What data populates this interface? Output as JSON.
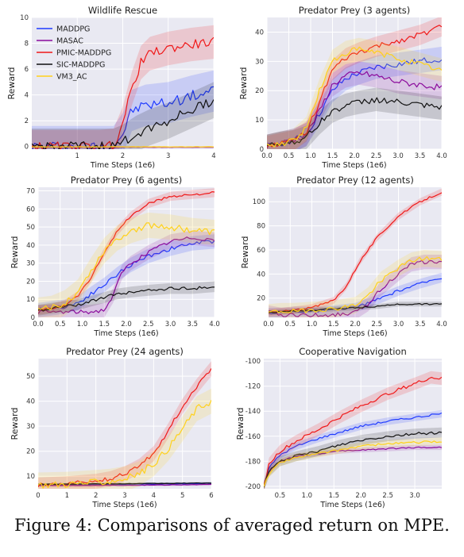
{
  "colors": {
    "MADDPG": "#1f3bff",
    "MASAC": "#8b0a9c",
    "PMIC-MADDPG": "#f01818",
    "SIC-MADDPG": "#111111",
    "VM3_AC": "#ffd11a",
    "panel_bg": "#e9e9f2",
    "grid": "#ffffff"
  },
  "legend": [
    "MADDPG",
    "MASAC",
    "PMIC-MADDPG",
    "SIC-MADDPG",
    "VM3_AC"
  ],
  "caption": "Figure 4: Comparisons of averaged return on MPE.",
  "chart_data": [
    {
      "type": "line",
      "title": "Wildlife Rescue",
      "xlabel": "Time Steps (1e6)",
      "ylabel": "Reward",
      "xlim": [
        0,
        4
      ],
      "ylim": [
        -0.2,
        10
      ],
      "xticks": [
        1,
        2,
        3,
        4
      ],
      "yticks": [
        0,
        2,
        4,
        6,
        8,
        10
      ],
      "grid": true,
      "legend": "top-left",
      "series": [
        {
          "name": "MADDPG",
          "x": [
            0,
            0.5,
            1,
            1.5,
            1.8,
            2,
            2.2,
            2.5,
            3,
            3.5,
            4
          ],
          "y": [
            0,
            0,
            0,
            0,
            0,
            1.0,
            2.8,
            3.2,
            3.4,
            3.9,
            4.3
          ],
          "band": 1.6
        },
        {
          "name": "MASAC",
          "x": [
            0,
            1,
            2,
            3,
            4
          ],
          "y": [
            -0.05,
            -0.05,
            -0.05,
            -0.05,
            -0.05
          ],
          "band": 0.05
        },
        {
          "name": "PMIC-MADDPG",
          "x": [
            0,
            0.5,
            1,
            1.5,
            1.8,
            2,
            2.2,
            2.4,
            2.6,
            3,
            3.5,
            4
          ],
          "y": [
            0,
            0,
            0,
            0,
            0.1,
            1.8,
            4.5,
            6.5,
            7.2,
            7.6,
            7.9,
            8.1
          ],
          "band": 1.3
        },
        {
          "name": "SIC-MADDPG",
          "x": [
            0,
            0.5,
            1,
            1.5,
            1.8,
            2,
            2.3,
            2.6,
            3,
            3.5,
            4
          ],
          "y": [
            0,
            0,
            0,
            0,
            0,
            0.3,
            1.0,
            1.5,
            2.0,
            2.8,
            3.6
          ],
          "band": 1.4
        },
        {
          "name": "VM3_AC",
          "x": [
            0,
            1,
            2,
            3,
            4
          ],
          "y": [
            -0.02,
            -0.02,
            -0.02,
            -0.02,
            -0.02
          ],
          "band": 0.05
        }
      ]
    },
    {
      "type": "line",
      "title": "Predator Prey (3 agents)",
      "xlabel": "Time Steps (1e6)",
      "ylabel": "Reward",
      "xlim": [
        0,
        4
      ],
      "ylim": [
        0,
        45
      ],
      "xticks": [
        0.0,
        0.5,
        1.0,
        1.5,
        2.0,
        2.5,
        3.0,
        3.5,
        4.0
      ],
      "yticks": [
        0,
        10,
        20,
        30,
        40
      ],
      "grid": true,
      "series": [
        {
          "name": "MADDPG",
          "x": [
            0,
            0.3,
            0.6,
            0.9,
            1.2,
            1.5,
            1.8,
            2.1,
            2.5,
            3,
            3.5,
            4
          ],
          "y": [
            1,
            2,
            3,
            5,
            12,
            20,
            24,
            26,
            28,
            29,
            30,
            31
          ],
          "band": 4
        },
        {
          "name": "MASAC",
          "x": [
            0,
            0.3,
            0.6,
            0.9,
            1.2,
            1.5,
            1.8,
            2.1,
            2.5,
            3,
            3.5,
            4
          ],
          "y": [
            1,
            2,
            3,
            5,
            13,
            22,
            25,
            26,
            25,
            23,
            22,
            21
          ],
          "band": 4
        },
        {
          "name": "PMIC-MADDPG",
          "x": [
            0,
            0.3,
            0.6,
            0.9,
            1.2,
            1.5,
            1.8,
            2.1,
            2.5,
            3,
            3.5,
            4
          ],
          "y": [
            1,
            2,
            3,
            6,
            16,
            27,
            31,
            33,
            35,
            37,
            39,
            42
          ],
          "band": 3.5
        },
        {
          "name": "SIC-MADDPG",
          "x": [
            0,
            0.3,
            0.6,
            0.9,
            1.2,
            1.5,
            1.8,
            2.1,
            2.5,
            3,
            3.5,
            4
          ],
          "y": [
            1,
            2,
            2.5,
            4,
            9,
            13,
            15,
            16,
            17,
            16,
            15,
            14
          ],
          "band": 4
        },
        {
          "name": "VM3_AC",
          "x": [
            0,
            0.3,
            0.6,
            0.9,
            1.2,
            1.5,
            1.8,
            2.1,
            2.5,
            3,
            3.5,
            4
          ],
          "y": [
            1,
            2,
            3,
            7,
            20,
            30,
            33,
            34,
            33,
            31,
            29,
            27
          ],
          "band": 4
        }
      ]
    },
    {
      "type": "line",
      "title": "Predator Prey (6 agents)",
      "xlabel": "Time Steps (1e6)",
      "ylabel": "Reward",
      "xlim": [
        0,
        4
      ],
      "ylim": [
        0,
        72
      ],
      "xticks": [
        0.0,
        0.5,
        1.0,
        1.5,
        2.0,
        2.5,
        3.0,
        3.5,
        4.0
      ],
      "yticks": [
        0,
        10,
        20,
        30,
        40,
        50,
        60,
        70
      ],
      "grid": true,
      "series": [
        {
          "name": "MADDPG",
          "x": [
            0,
            0.3,
            0.6,
            0.9,
            1.2,
            1.5,
            1.8,
            2.1,
            2.5,
            3,
            3.5,
            4
          ],
          "y": [
            4,
            5,
            6,
            8,
            13,
            18,
            24,
            29,
            34,
            38,
            41,
            42
          ],
          "band": 4
        },
        {
          "name": "MASAC",
          "x": [
            0,
            0.3,
            0.6,
            0.9,
            1.2,
            1.5,
            1.7,
            1.9,
            2.1,
            2.5,
            3,
            3.5,
            4
          ],
          "y": [
            3,
            3,
            3,
            3,
            3,
            4,
            12,
            25,
            30,
            36,
            42,
            44,
            43
          ],
          "band": 4
        },
        {
          "name": "PMIC-MADDPG",
          "x": [
            0,
            0.3,
            0.6,
            0.9,
            1.2,
            1.5,
            1.8,
            2.1,
            2.5,
            3,
            3.5,
            4
          ],
          "y": [
            4,
            5,
            7,
            12,
            22,
            36,
            48,
            56,
            63,
            67,
            68,
            69
          ],
          "band": 2.5
        },
        {
          "name": "SIC-MADDPG",
          "x": [
            0,
            0.3,
            0.6,
            0.9,
            1.2,
            1.5,
            1.8,
            2.1,
            2.5,
            3,
            3.5,
            4
          ],
          "y": [
            4,
            5,
            6,
            7,
            9,
            11,
            13,
            14,
            15,
            16,
            16,
            17
          ],
          "band": 3
        },
        {
          "name": "VM3_AC",
          "x": [
            0,
            0.3,
            0.6,
            0.9,
            1.2,
            1.5,
            1.8,
            2.1,
            2.5,
            3,
            3.5,
            4
          ],
          "y": [
            4,
            5,
            8,
            14,
            26,
            37,
            44,
            48,
            51,
            50,
            48,
            47
          ],
          "band": 7
        }
      ]
    },
    {
      "type": "line",
      "title": "Predator Prey (12 agents)",
      "xlabel": "Time Steps (1e6)",
      "ylabel": "Reward",
      "xlim": [
        0,
        4
      ],
      "ylim": [
        4,
        112
      ],
      "xticks": [
        0.0,
        0.5,
        1.0,
        1.5,
        2.0,
        2.5,
        3.0,
        3.5,
        4.0
      ],
      "yticks": [
        20,
        40,
        60,
        80,
        100
      ],
      "grid": true,
      "series": [
        {
          "name": "MADDPG",
          "x": [
            0,
            0.3,
            0.6,
            1,
            1.5,
            2,
            2.3,
            2.6,
            3,
            3.5,
            4
          ],
          "y": [
            8,
            8,
            9,
            9,
            10,
            12,
            16,
            20,
            26,
            32,
            37
          ],
          "band": 4
        },
        {
          "name": "MASAC",
          "x": [
            0,
            0.3,
            0.6,
            1,
            1.5,
            2,
            2.3,
            2.6,
            3,
            3.3,
            3.6,
            4
          ],
          "y": [
            8,
            6,
            6,
            6,
            6,
            8,
            15,
            28,
            40,
            48,
            50,
            50
          ],
          "band": 6
        },
        {
          "name": "PMIC-MADDPG",
          "x": [
            0,
            0.3,
            0.6,
            1,
            1.5,
            1.8,
            2.1,
            2.5,
            3,
            3.5,
            4
          ],
          "y": [
            8,
            9,
            10,
            12,
            18,
            30,
            50,
            70,
            88,
            100,
            108
          ],
          "band": 3
        },
        {
          "name": "SIC-MADDPG",
          "x": [
            0,
            0.5,
            1,
            1.5,
            2,
            2.5,
            3,
            3.5,
            4
          ],
          "y": [
            8,
            9,
            10,
            11,
            12,
            13,
            15,
            15,
            15
          ],
          "band": 2
        },
        {
          "name": "VM3_AC",
          "x": [
            0,
            0.3,
            0.6,
            1,
            1.5,
            2,
            2.3,
            2.6,
            3,
            3.3,
            3.6,
            4
          ],
          "y": [
            8,
            9,
            9,
            10,
            11,
            14,
            22,
            35,
            45,
            51,
            53,
            52
          ],
          "band": 7
        }
      ]
    },
    {
      "type": "line",
      "title": "Predator Prey (24 agents)",
      "xlabel": "Time Steps (1e6)",
      "ylabel": "Reward",
      "xlim": [
        0,
        6
      ],
      "ylim": [
        5,
        57
      ],
      "xticks": [
        0.0,
        1.0,
        2.0,
        3.0,
        4.0,
        5.0,
        6.0
      ],
      "yticks": [
        10,
        20,
        30,
        40,
        50
      ],
      "grid": true,
      "series": [
        {
          "name": "MADDPG",
          "x": [
            0,
            1,
            2,
            3,
            4,
            5,
            6
          ],
          "y": [
            6.5,
            6.6,
            6.7,
            6.8,
            6.9,
            7.0,
            7.2
          ],
          "band": 0.5
        },
        {
          "name": "MASAC",
          "x": [
            0,
            1,
            2,
            3,
            4,
            5,
            6
          ],
          "y": [
            6.3,
            6.3,
            6.4,
            6.4,
            6.5,
            6.6,
            6.7
          ],
          "band": 0.4
        },
        {
          "name": "PMIC-MADDPG",
          "x": [
            0,
            1,
            2,
            2.5,
            3,
            3.5,
            4,
            4.5,
            5,
            5.5,
            6
          ],
          "y": [
            6.5,
            7,
            8,
            9,
            11,
            14,
            19,
            28,
            38,
            46,
            53
          ],
          "band": 3
        },
        {
          "name": "SIC-MADDPG",
          "x": [
            0,
            1,
            2,
            3,
            4,
            5,
            6
          ],
          "y": [
            6.8,
            6.9,
            7.0,
            7.0,
            7.1,
            7.2,
            7.3
          ],
          "band": 0.4
        },
        {
          "name": "VM3_AC",
          "x": [
            0,
            1,
            2,
            2.5,
            3,
            3.5,
            4,
            4.5,
            5,
            5.5,
            6
          ],
          "y": [
            6.5,
            6.8,
            7.5,
            8,
            9,
            11,
            15,
            21,
            29,
            37,
            40
          ],
          "band": 5
        }
      ]
    },
    {
      "type": "line",
      "title": "Cooperative Navigation",
      "xlabel": "Time Steps (1e6)",
      "ylabel": "Reward",
      "xlim": [
        0.2,
        3.5
      ],
      "ylim": [
        -202,
        -98
      ],
      "xticks": [
        0.5,
        1.0,
        1.5,
        2.0,
        2.5,
        3.0
      ],
      "yticks": [
        -200,
        -180,
        -160,
        -140,
        -120,
        -100
      ],
      "grid": true,
      "series": [
        {
          "name": "MADDPG",
          "x": [
            0.2,
            0.3,
            0.5,
            0.8,
            1.2,
            1.6,
            2,
            2.5,
            3,
            3.5
          ],
          "y": [
            -200,
            -185,
            -175,
            -168,
            -162,
            -157,
            -152,
            -148,
            -145,
            -142
          ],
          "band": 3
        },
        {
          "name": "MASAC",
          "x": [
            0.2,
            0.3,
            0.5,
            0.8,
            1.2,
            1.6,
            2,
            2.5,
            3,
            3.5
          ],
          "y": [
            -200,
            -188,
            -180,
            -176,
            -174,
            -172,
            -171,
            -170,
            -169,
            -169
          ],
          "band": 2
        },
        {
          "name": "PMIC-MADDPG",
          "x": [
            0.2,
            0.3,
            0.5,
            0.8,
            1.2,
            1.6,
            2,
            2.5,
            3,
            3.3,
            3.5
          ],
          "y": [
            -200,
            -182,
            -172,
            -164,
            -155,
            -145,
            -136,
            -126,
            -118,
            -113,
            -114
          ],
          "band": 5
        },
        {
          "name": "SIC-MADDPG",
          "x": [
            0.2,
            0.3,
            0.5,
            0.8,
            1.2,
            1.6,
            2,
            2.5,
            3,
            3.5
          ],
          "y": [
            -200,
            -188,
            -180,
            -176,
            -172,
            -167,
            -163,
            -160,
            -158,
            -157
          ],
          "band": 4
        },
        {
          "name": "VM3_AC",
          "x": [
            0.2,
            0.3,
            0.5,
            0.8,
            1.2,
            1.6,
            2,
            2.5,
            3,
            3.5
          ],
          "y": [
            -200,
            -190,
            -181,
            -177,
            -174,
            -171,
            -168,
            -166,
            -165,
            -164
          ],
          "band": 3
        }
      ]
    }
  ]
}
